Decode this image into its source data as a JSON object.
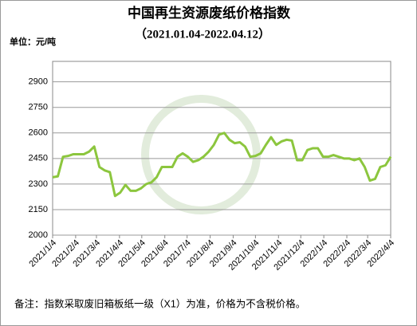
{
  "chart_data": {
    "type": "line",
    "title": "中国再生资源废纸价格指数",
    "subtitle": "（2021.01.04-2022.04.12）",
    "unit_label": "单位：元/吨",
    "footnote": "备注：指数采取废旧箱板纸一级（X1）为准，价格为不含税价格。",
    "x": [
      "2021/1/4",
      "2021/1/11",
      "2021/1/18",
      "2021/1/25",
      "2021/2/1",
      "2021/2/8",
      "2021/2/15",
      "2021/2/22",
      "2021/3/1",
      "2021/3/8",
      "2021/3/15",
      "2021/3/22",
      "2021/3/29",
      "2021/4/5",
      "2021/4/12",
      "2021/4/19",
      "2021/4/26",
      "2021/5/3",
      "2021/5/10",
      "2021/5/17",
      "2021/5/24",
      "2021/5/31",
      "2021/6/7",
      "2021/6/14",
      "2021/6/21",
      "2021/6/28",
      "2021/7/5",
      "2021/7/12",
      "2021/7/19",
      "2021/7/26",
      "2021/8/2",
      "2021/8/9",
      "2021/8/16",
      "2021/8/23",
      "2021/8/30",
      "2021/9/6",
      "2021/9/13",
      "2021/9/20",
      "2021/9/27",
      "2021/10/4",
      "2021/10/11",
      "2021/10/18",
      "2021/10/25",
      "2021/11/1",
      "2021/11/8",
      "2021/11/15",
      "2021/11/22",
      "2021/11/29",
      "2021/12/6",
      "2021/12/13",
      "2021/12/20",
      "2021/12/27",
      "2022/1/3",
      "2022/1/10",
      "2022/1/17",
      "2022/1/24",
      "2022/1/31",
      "2022/2/7",
      "2022/2/14",
      "2022/2/21",
      "2022/2/28",
      "2022/3/7",
      "2022/3/14",
      "2022/3/21",
      "2022/3/28",
      "2022/4/4"
    ],
    "series": [
      {
        "color": "#8cc63e",
        "values": [
          2340,
          2345,
          2460,
          2465,
          2475,
          2475,
          2475,
          2490,
          2520,
          2400,
          2380,
          2370,
          2230,
          2250,
          2295,
          2260,
          2260,
          2275,
          2300,
          2310,
          2340,
          2400,
          2400,
          2400,
          2460,
          2480,
          2460,
          2430,
          2440,
          2460,
          2490,
          2530,
          2590,
          2600,
          2560,
          2540,
          2545,
          2520,
          2460,
          2465,
          2480,
          2530,
          2575,
          2530,
          2550,
          2560,
          2555,
          2440,
          2440,
          2500,
          2510,
          2510,
          2460,
          2460,
          2470,
          2460,
          2450,
          2450,
          2440,
          2450,
          2400,
          2320,
          2330,
          2400,
          2410,
          2460
        ]
      }
    ],
    "xlim": [
      "2021/1/4",
      "2022/4/4"
    ],
    "xticks": [
      "2021/1/4",
      "2021/2/4",
      "2021/3/4",
      "2021/4/4",
      "2021/5/4",
      "2021/6/4",
      "2021/7/4",
      "2021/8/4",
      "2021/9/4",
      "2021/10/4",
      "2021/11/4",
      "2021/12/4",
      "2022/1/4",
      "2022/2/4",
      "2022/3/4",
      "2022/4/4"
    ],
    "ylim": [
      2000,
      3020
    ],
    "yticks": [
      2000,
      2150,
      2300,
      2450,
      2600,
      2750,
      2900
    ],
    "grid": true
  }
}
